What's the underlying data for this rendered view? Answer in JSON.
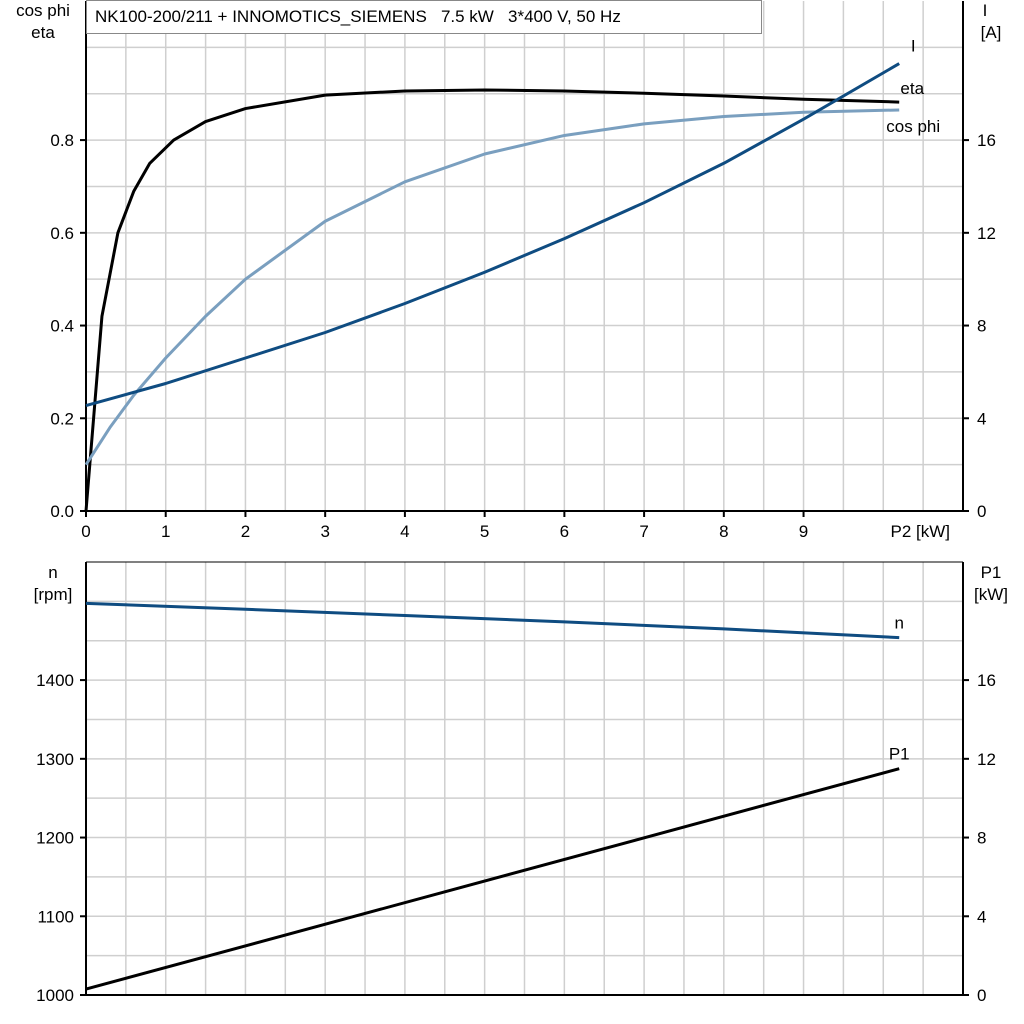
{
  "title": "NK100-200/211 + INNOMOTICS_SIEMENS   7.5 kW   3*400 V, 50 Hz",
  "colors": {
    "eta": "#000000",
    "cos_phi": "#7a9fbf",
    "I": "#0f4c81",
    "n": "#0f4c81",
    "P1": "#000000",
    "grid": "#cfcfcf"
  },
  "chart_data": [
    {
      "type": "line",
      "xlabel": "P2 [kW]",
      "ylabel_left": [
        "cos phi",
        "eta"
      ],
      "ylabel_right": [
        "I",
        "[A]"
      ],
      "xlim": [
        0,
        11
      ],
      "ylim_left": [
        0,
        1.1
      ],
      "ylim_right": [
        0,
        22
      ],
      "x_ticks": [
        "0",
        "1",
        "2",
        "3",
        "4",
        "5",
        "6",
        "7",
        "8",
        "9"
      ],
      "y_ticks_left": [
        "0.0",
        "0.2",
        "0.4",
        "0.6",
        "0.8"
      ],
      "y_ticks_right": [
        "0",
        "4",
        "8",
        "12",
        "16"
      ],
      "grid": true,
      "series": [
        {
          "name": "eta",
          "axis": "left",
          "x": [
            0,
            0.2,
            0.4,
            0.6,
            0.8,
            1.1,
            1.5,
            2,
            3,
            4,
            5,
            6,
            7,
            8,
            9,
            10.2
          ],
          "y": [
            0,
            0.42,
            0.6,
            0.69,
            0.75,
            0.8,
            0.84,
            0.868,
            0.897,
            0.906,
            0.908,
            0.906,
            0.901,
            0.895,
            0.888,
            0.882
          ]
        },
        {
          "name": "cos phi",
          "axis": "left",
          "x": [
            0,
            0.3,
            0.6,
            1,
            1.5,
            2,
            3,
            4,
            5,
            6,
            7,
            8,
            9,
            10.2
          ],
          "y": [
            0.1,
            0.18,
            0.25,
            0.33,
            0.42,
            0.5,
            0.625,
            0.71,
            0.77,
            0.81,
            0.835,
            0.851,
            0.86,
            0.865
          ]
        },
        {
          "name": "I",
          "axis": "right",
          "x": [
            0,
            1,
            2,
            3,
            4,
            5,
            6,
            7,
            8,
            9,
            10.2
          ],
          "y": [
            4.55,
            5.5,
            6.6,
            7.7,
            8.95,
            10.3,
            11.75,
            13.3,
            15,
            16.9,
            19.3
          ]
        }
      ]
    },
    {
      "type": "line",
      "ylabel_left": [
        "n",
        "[rpm]"
      ],
      "ylabel_right": [
        "P1",
        "[kW]"
      ],
      "xlim": [
        0,
        11
      ],
      "ylim_left": [
        1000,
        1550
      ],
      "ylim_right": [
        0,
        22
      ],
      "y_ticks_left": [
        "1000",
        "1100",
        "1200",
        "1300",
        "1400"
      ],
      "y_ticks_right": [
        "0",
        "4",
        "8",
        "12",
        "16"
      ],
      "grid": true,
      "series": [
        {
          "name": "n",
          "axis": "left",
          "x": [
            0,
            2,
            4,
            6,
            8,
            10.2
          ],
          "y": [
            1497.5,
            1490,
            1482,
            1474,
            1465,
            1454
          ]
        },
        {
          "name": "P1",
          "axis": "right",
          "x": [
            0,
            10.2
          ],
          "y": [
            0.3,
            11.5
          ]
        }
      ]
    }
  ]
}
